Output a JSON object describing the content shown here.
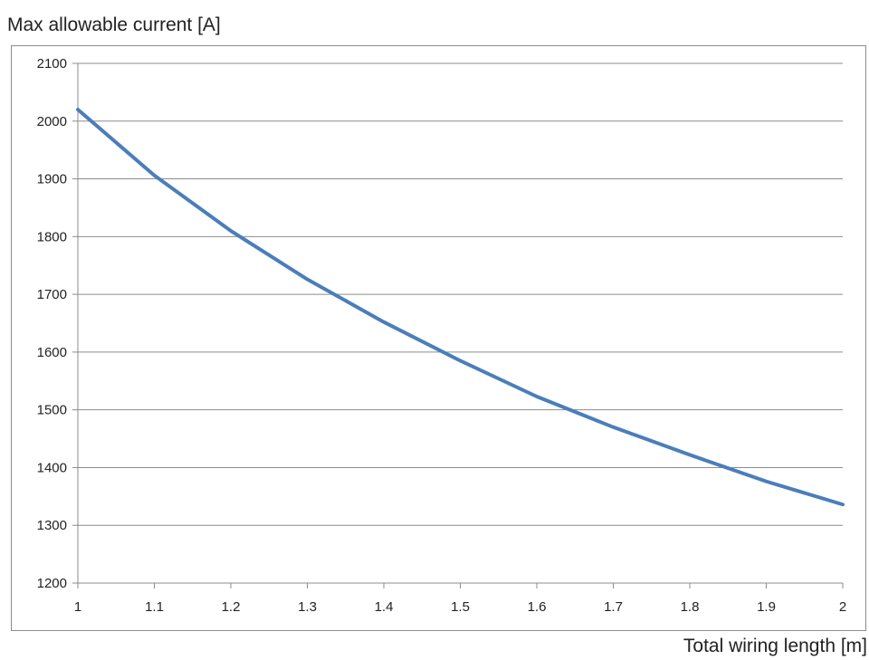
{
  "chart_data": {
    "type": "line",
    "title": "",
    "ylabel": "Max allowable current [A]",
    "xlabel": "Total wiring length [m]",
    "x": [
      1,
      1.1,
      1.2,
      1.3,
      1.4,
      1.5,
      1.6,
      1.7,
      1.8,
      1.9,
      2
    ],
    "xticks": [
      "1",
      "1.1",
      "1.2",
      "1.3",
      "1.4",
      "1.5",
      "1.6",
      "1.7",
      "1.8",
      "1.9",
      "2"
    ],
    "ylim": [
      1200,
      2100
    ],
    "yticks": [
      "1200",
      "1300",
      "1400",
      "1500",
      "1600",
      "1700",
      "1800",
      "1900",
      "2000",
      "2100"
    ],
    "grid": true,
    "legend": "none",
    "series": [
      {
        "values": [
          2020,
          1906,
          1810,
          1726,
          1652,
          1585,
          1523,
          1470,
          1422,
          1376,
          1336
        ],
        "color": "#4a7ebb"
      }
    ]
  }
}
